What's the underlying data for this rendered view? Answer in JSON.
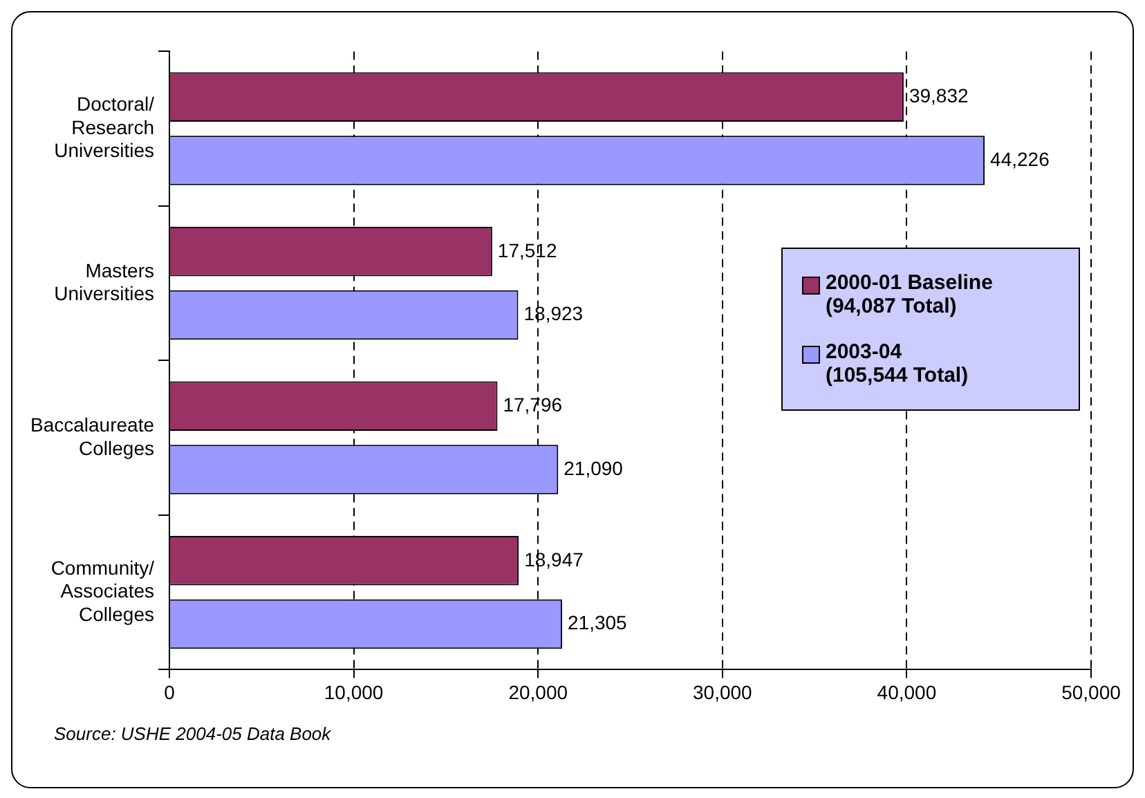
{
  "chart_data": {
    "type": "bar",
    "orientation": "horizontal",
    "categories": [
      "Doctoral/ Research Universities",
      "Masters Universities",
      "Baccalaureate Colleges",
      "Community/ Associates Colleges"
    ],
    "series": [
      {
        "name": "2000-01 Baseline (94,087 Total)",
        "color": "#993366",
        "values": [
          39832,
          17512,
          17796,
          18947
        ],
        "value_labels": [
          "39,832",
          "17,512",
          "17,796",
          "18,947"
        ]
      },
      {
        "name": "2003-04 (105,544 Total)",
        "color": "#9999ff",
        "values": [
          44226,
          18923,
          21090,
          21305
        ],
        "value_labels": [
          "44,226",
          "18,923",
          "21,090",
          "21,305"
        ]
      }
    ],
    "xlim": [
      0,
      50000
    ],
    "xticks": [
      0,
      {
        "value": 10000,
        "label": "10,000"
      },
      {
        "value": 20000,
        "label": "20,000"
      },
      {
        "value": 30000,
        "label": "30,000"
      },
      {
        "value": 40000,
        "label": "40,000"
      },
      {
        "value": 50000,
        "label": "50,000"
      }
    ],
    "grid": "x",
    "legend": "right",
    "annotations": [
      "Source: USHE 2004-05 Data Book"
    ]
  }
}
